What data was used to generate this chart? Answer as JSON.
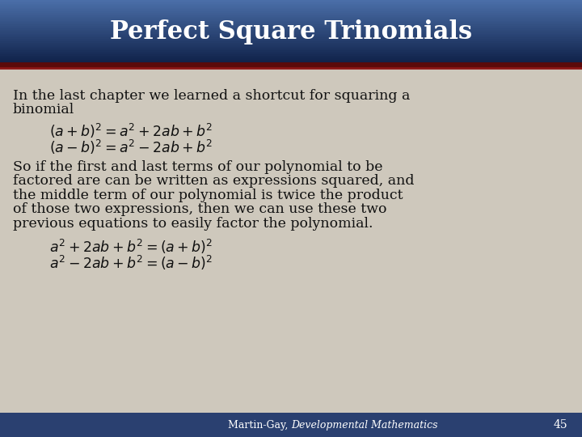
{
  "title": "Perfect Square Trinomials",
  "title_color": "#ffffff",
  "body_bg": "#cec8bc",
  "footer_bg": "#2a4070",
  "footer_text": "Martin-Gay,",
  "footer_text2": "Developmental Mathematics",
  "footer_number": "45",
  "footer_color": "#ffffff",
  "text_color": "#111111",
  "title_fs": 22,
  "body_fs": 12.5,
  "eq_fs": 12.5,
  "footer_fs": 9
}
